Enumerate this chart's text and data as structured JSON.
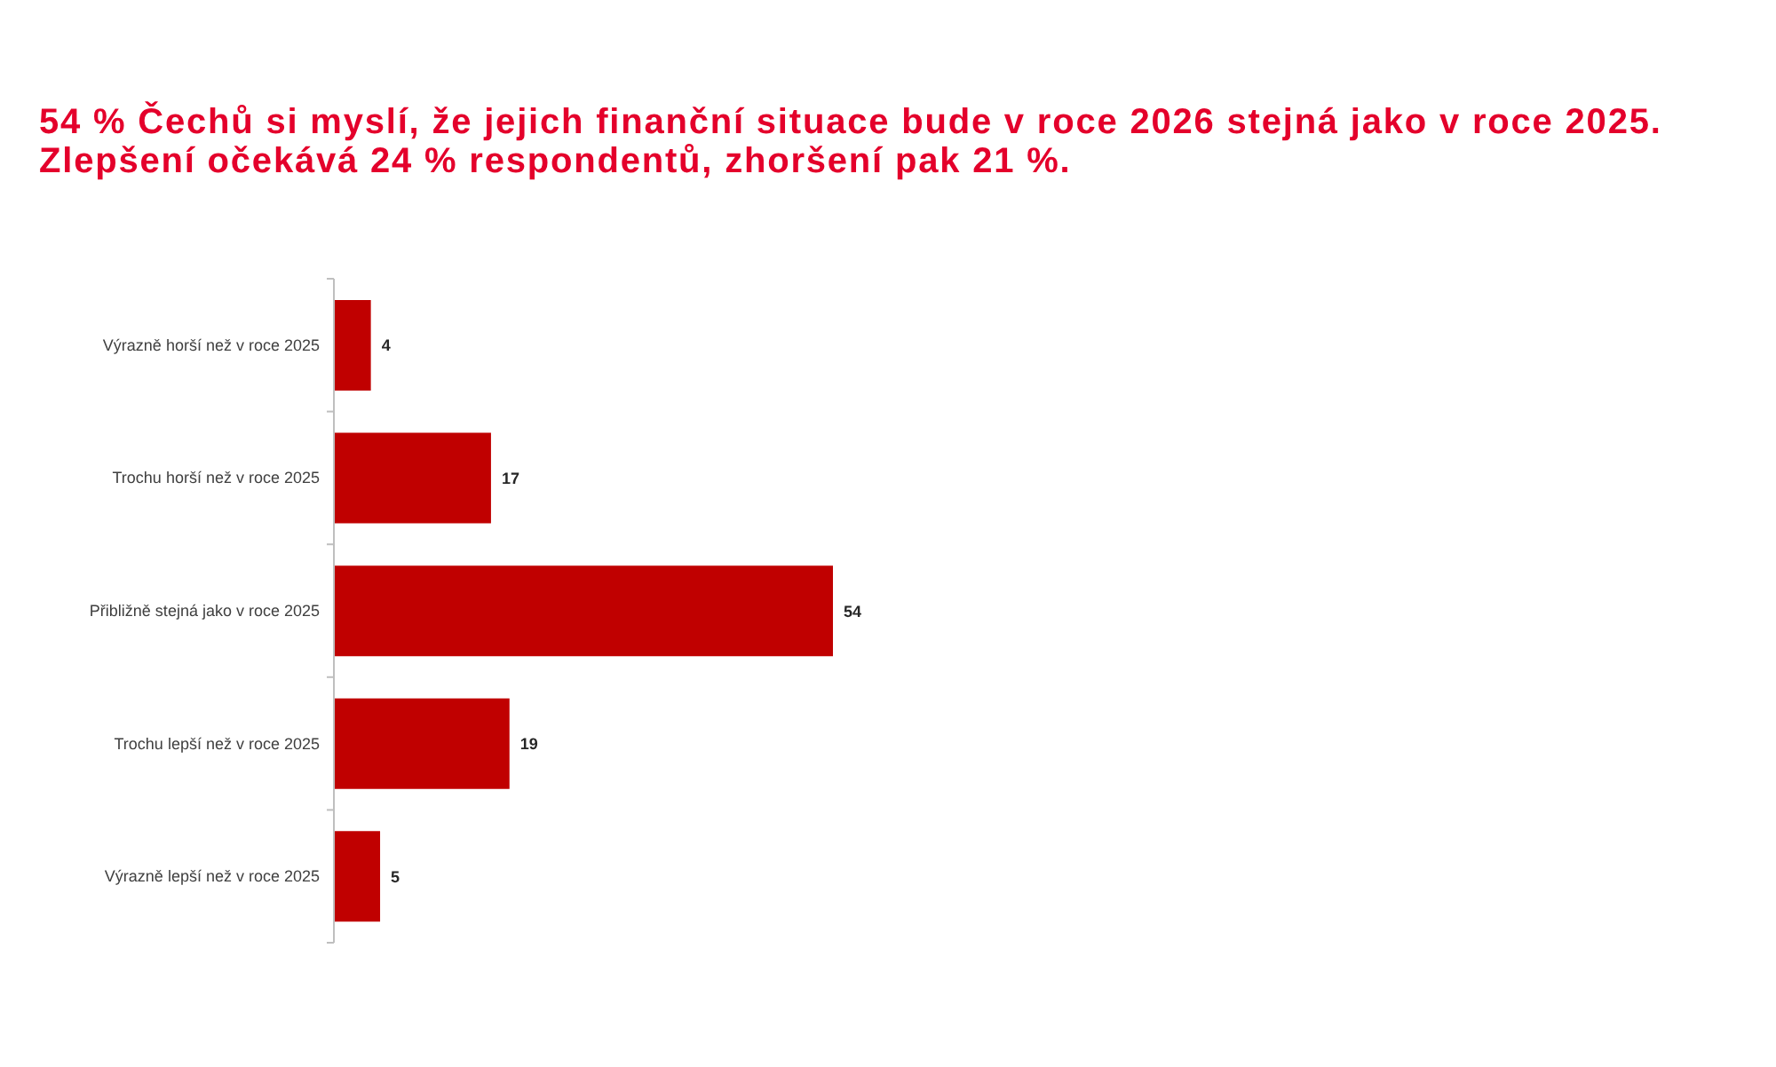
{
  "chart_data": {
    "type": "bar",
    "orientation": "horizontal",
    "title": "54 % Čechů si myslí, že jejich finanční situace bude v roce 2026 stejná jako v roce 2025.",
    "subtitle": "Zlepšení očekává 24 % respondentů, zhoršení pak 21 %.",
    "categories": [
      "Výrazně horší než v roce 2025",
      "Trochu horší než v roce 2025",
      "Přibližně stejná jako v roce 2025",
      "Trochu lepší než v roce 2025",
      "Výrazně lepší než v roce 2025"
    ],
    "values": [
      4,
      17,
      54,
      19,
      5
    ],
    "color": "#c00000",
    "data_labels": true,
    "tick_labels": "y"
  }
}
